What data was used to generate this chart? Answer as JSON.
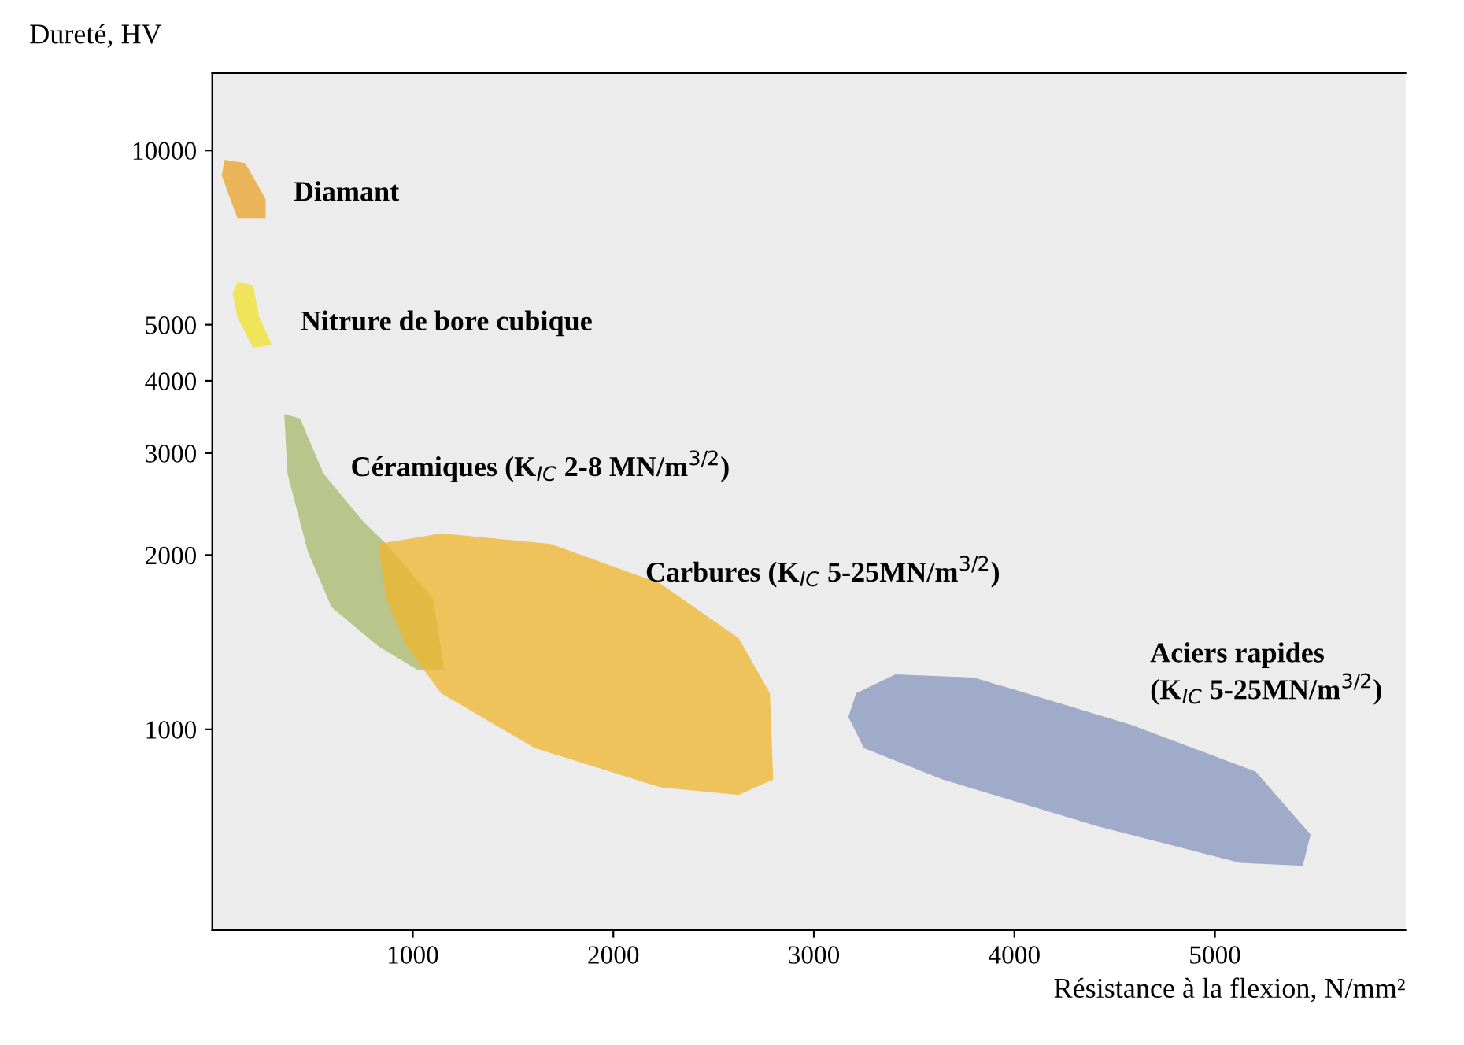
{
  "chart_data": {
    "type": "area",
    "xlabel": "Résistance à la flexion, N/mm²",
    "ylabel": "Dureté, HV",
    "log": "y",
    "grid": false,
    "xlim": [
      0,
      5950
    ],
    "ylim": [
      450,
      13600
    ],
    "xticks": [
      1000,
      2000,
      3000,
      4000,
      5000
    ],
    "yticks": [
      1000,
      2000,
      3000,
      4000,
      5000,
      10000
    ],
    "series": [
      {
        "color": "#e9a128",
        "x": [
          62,
          164,
          266,
          266,
          125,
          47
        ],
        "values": [
          9640,
          9510,
          8240,
          7640,
          7640,
          9050
        ]
      },
      {
        "color": "#f2e22a",
        "x": [
          125,
          203,
          234,
          297,
          203,
          125,
          102
        ],
        "values": [
          5920,
          5850,
          5160,
          4610,
          4560,
          5160,
          5670
        ]
      },
      {
        "color": "#a9b86c",
        "x": [
          359,
          438,
          555,
          750,
          867,
          1102,
          1156,
          1023,
          828,
          594,
          477,
          375
        ],
        "values": [
          3505,
          3440,
          2765,
          2290,
          2090,
          1680,
          1267,
          1267,
          1392,
          1626,
          2025,
          2765
        ]
      },
      {
        "color": "#efb52b",
        "x": [
          828,
          1141,
          1688,
          2234,
          2625,
          2781,
          2797,
          2625,
          2234,
          1609,
          1141,
          969,
          867
        ],
        "values": [
          2090,
          2180,
          2090,
          1786,
          1437,
          1154,
          819,
          770,
          794,
          928,
          1154,
          1392,
          1680
        ]
      },
      {
        "color": "#8595bd",
        "x": [
          3211,
          3406,
          3797,
          4578,
          5203,
          5477,
          5438,
          5125,
          4422,
          3641,
          3250,
          3172
        ],
        "values": [
          1154,
          1244,
          1229,
          1019,
          845,
          658,
          581,
          588,
          679,
          819,
          928,
          1051
        ]
      }
    ],
    "annotations": [
      "Diamant",
      "Nitrure de bore cubique",
      "Céramiques (K$_{IC}$ 2-8 MN/m$^{3/2}$)",
      "Carbures (K$_{IC}$ 5-25MN/m$^{3/2}$)",
      "Aciers rapides\n(K$_{IC}$ 5-25MN/m$^{3/2}$)"
    ]
  }
}
